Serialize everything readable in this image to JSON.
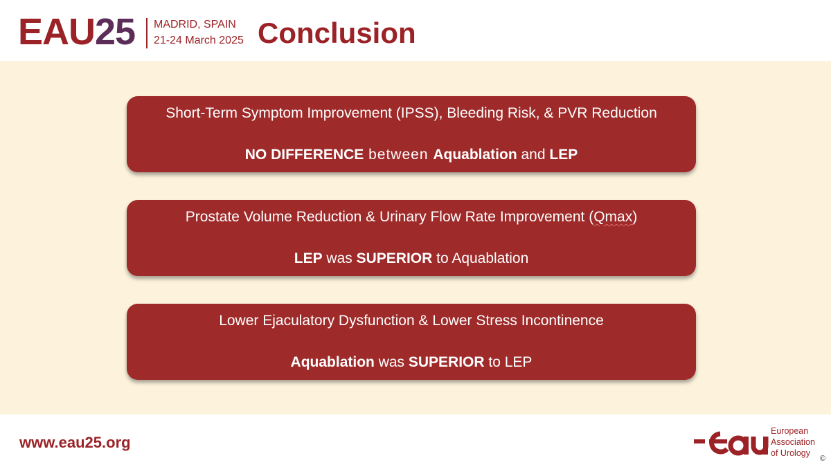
{
  "header": {
    "logo_eau": "EAU",
    "logo_year": "25",
    "location": "MADRID, SPAIN",
    "dates": "21-24 March 2025",
    "title": "Conclusion"
  },
  "cards": [
    {
      "heading": "Short-Term Symptom Improvement (IPSS), Bleeding Risk, & PVR Reduction",
      "r1": "NO DIFFERENCE",
      "r2": " between ",
      "r3": "Aquablation",
      "r4": " and ",
      "r5": "LEP"
    },
    {
      "heading_a": "Prostate Volume Reduction & Urinary Flow Rate Improvement (",
      "heading_b": "Qmax",
      "heading_c": ")",
      "r1": "LEP",
      "r2": " was ",
      "r3": "SUPERIOR",
      "r4": " to Aquablation"
    },
    {
      "heading": "Lower Ejaculatory Dysfunction & Lower Stress Incontinence",
      "r1": "Aquablation",
      "r2": " was ",
      "r3": "SUPERIOR",
      "r4": " to LEP"
    }
  ],
  "footer": {
    "url": "www.eau25.org",
    "org_line1": "European",
    "org_line2": "Association",
    "org_line3": "of Urology",
    "copyright": "©"
  },
  "colors": {
    "brand_red": "#9b2226",
    "brand_purple": "#5b2d58",
    "card_bg": "#9e2a2a",
    "content_bg": "#fdf3dd"
  }
}
